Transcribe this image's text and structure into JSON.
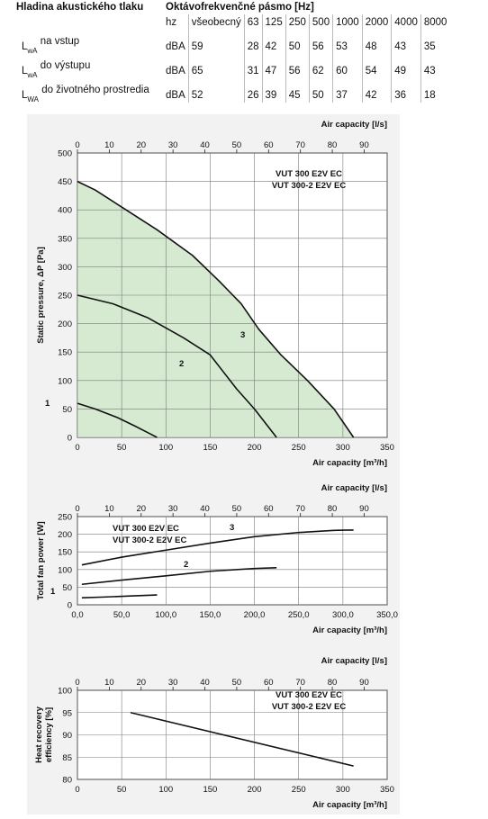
{
  "sound_table": {
    "title": "Hladina akustického tlaku",
    "band_header": "Oktávofrekvenčné pásmo [Hz]",
    "units_header": "hz",
    "columns": [
      "všeobecný",
      "63",
      "125",
      "250",
      "500",
      "1000",
      "2000",
      "4000",
      "8000"
    ],
    "rows": [
      {
        "main": "L",
        "sub": "wA",
        "desc": "na vstup",
        "unit": "dBA",
        "values": [
          "59",
          "28",
          "42",
          "50",
          "56",
          "53",
          "48",
          "43",
          "35"
        ]
      },
      {
        "main": "L",
        "sub": "wA",
        "desc": "do výstupu",
        "unit": "dBA",
        "values": [
          "65",
          "31",
          "47",
          "56",
          "62",
          "60",
          "54",
          "49",
          "43"
        ]
      },
      {
        "main": "L",
        "sub": "WA",
        "desc": "do životného prostredia",
        "unit": "dBA",
        "values": [
          "52",
          "26",
          "39",
          "45",
          "50",
          "37",
          "42",
          "36",
          "18"
        ]
      }
    ]
  },
  "colors": {
    "panel": "#f2f2f2",
    "fill": "#d5ead0",
    "grid": "#7a7a7a",
    "curve": "#111111"
  },
  "chart_data": [
    {
      "type": "line",
      "model_label": [
        "VUT 300 E2V EC",
        "VUT 300-2 E2V EC"
      ],
      "xlabel": "Air capacity [m³/h]",
      "x2label": "Air capacity [l/s]",
      "ylabel": "Static pressure, ΔP [Pa]",
      "xlim": [
        0,
        350
      ],
      "ylim": [
        0,
        500
      ],
      "x2lim": [
        0,
        97.22
      ],
      "xticks": [
        "0",
        "50",
        "100",
        "150",
        "200",
        "250",
        "300",
        "350"
      ],
      "x2ticks": [
        "0",
        "10",
        "20",
        "30",
        "40",
        "50",
        "60",
        "70",
        "80",
        "90"
      ],
      "yticks": [
        "0",
        "50",
        "100",
        "150",
        "200",
        "250",
        "300",
        "350",
        "400",
        "450",
        "500"
      ],
      "grid": true,
      "filled_series": "3",
      "series": [
        {
          "name": "1",
          "x": [
            0,
            20,
            45,
            65,
            80,
            90
          ],
          "y": [
            60,
            50,
            35,
            20,
            8,
            0
          ]
        },
        {
          "name": "2",
          "x": [
            0,
            40,
            80,
            120,
            150,
            165,
            180,
            200,
            225
          ],
          "y": [
            250,
            235,
            210,
            175,
            145,
            115,
            85,
            50,
            0
          ]
        },
        {
          "name": "3",
          "x": [
            0,
            20,
            50,
            90,
            130,
            160,
            185,
            205,
            230,
            260,
            290,
            312
          ],
          "y": [
            450,
            435,
            405,
            365,
            320,
            275,
            235,
            190,
            145,
            100,
            50,
            0
          ]
        }
      ]
    },
    {
      "type": "line",
      "model_label": [
        "VUT 300 E2V EC",
        "VUT 300-2 E2V EC"
      ],
      "xlabel": "Air capacity [m³/h]",
      "x2label": "Air capacity [l/s]",
      "ylabel": "Total fan power [W]",
      "xlim": [
        0,
        350
      ],
      "ylim": [
        0,
        250
      ],
      "x2lim": [
        0,
        97.22
      ],
      "xticks": [
        "0,0",
        "50,0",
        "100,0",
        "150,0",
        "200,0",
        "250,0",
        "300,0",
        "350,0"
      ],
      "x2ticks": [
        "0",
        "10",
        "20",
        "30",
        "40",
        "50",
        "60",
        "70",
        "80",
        "90"
      ],
      "yticks": [
        "0",
        "50",
        "100",
        "150",
        "200",
        "250"
      ],
      "grid": true,
      "series": [
        {
          "name": "1",
          "x": [
            5,
            30,
            60,
            90
          ],
          "y": [
            20,
            22,
            25,
            28
          ]
        },
        {
          "name": "2",
          "x": [
            5,
            50,
            100,
            150,
            200,
            225
          ],
          "y": [
            58,
            70,
            82,
            95,
            103,
            105
          ]
        },
        {
          "name": "3",
          "x": [
            5,
            50,
            100,
            150,
            200,
            250,
            290,
            312
          ],
          "y": [
            113,
            135,
            155,
            175,
            193,
            205,
            211,
            212
          ]
        }
      ]
    },
    {
      "type": "line",
      "model_label": [
        "VUT 300 E2V EC",
        "VUT 300-2 E2V EC"
      ],
      "xlabel": "Air capacity [m³/h]",
      "x2label": "Air capacity [l/s]",
      "ylabel": "Heat recovery efficiency [%]",
      "xlim": [
        0,
        350
      ],
      "ylim": [
        80,
        100
      ],
      "x2lim": [
        0,
        97.22
      ],
      "xticks": [
        "0",
        "50",
        "100",
        "150",
        "200",
        "250",
        "300",
        "350"
      ],
      "x2ticks": [
        "0",
        "10",
        "20",
        "30",
        "40",
        "50",
        "60",
        "70",
        "80",
        "90"
      ],
      "yticks": [
        "80",
        "85",
        "90",
        "95",
        "100"
      ],
      "grid": true,
      "series": [
        {
          "name": "",
          "x": [
            60,
            312
          ],
          "y": [
            95,
            83
          ]
        }
      ]
    }
  ]
}
